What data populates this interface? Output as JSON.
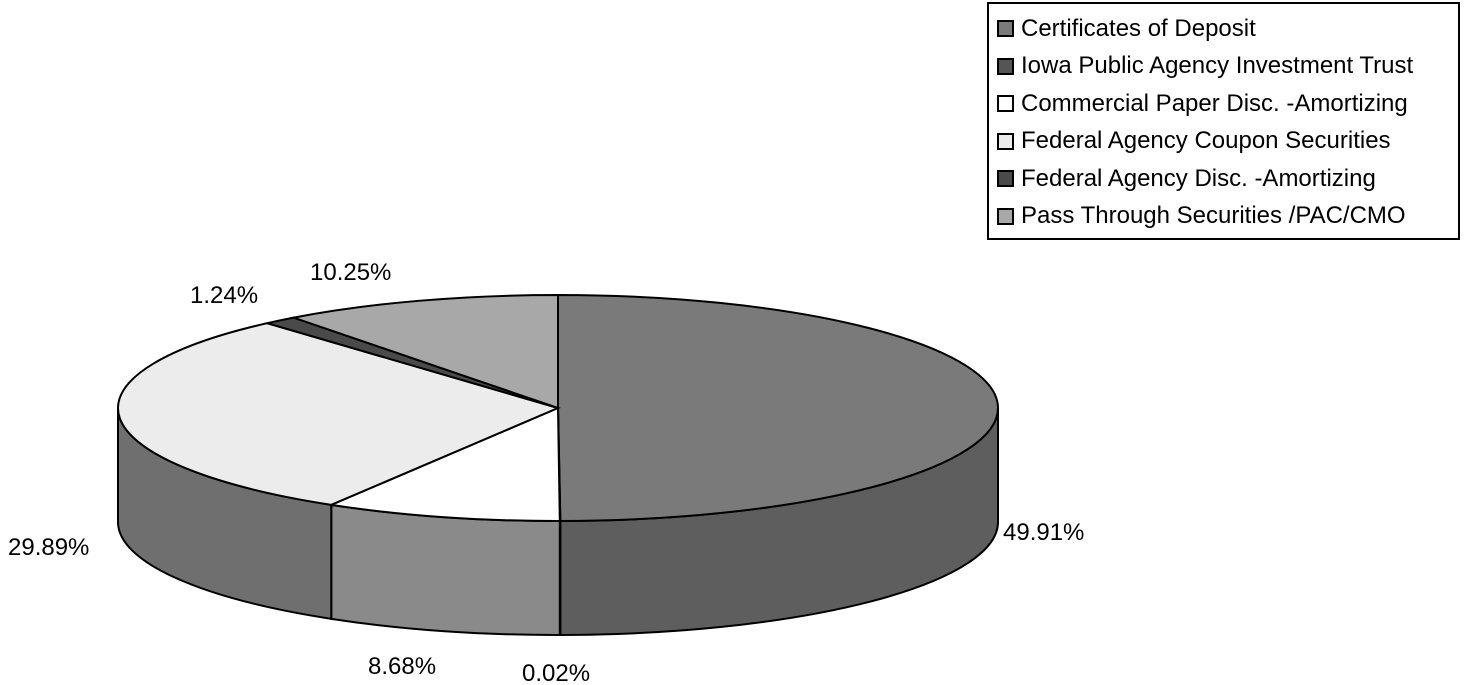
{
  "chart_data": {
    "type": "pie",
    "style": "3d",
    "legend_position": "top-right",
    "series": [
      {
        "name": "Certificates of Deposit",
        "value": 49.91,
        "label": "49.91%",
        "color": "#7a7a7a",
        "side_color": "#5e5e5e"
      },
      {
        "name": "Iowa Public Agency Investment Trust",
        "value": 0.02,
        "label": "0.02%",
        "color": "#555555",
        "side_color": "#444444"
      },
      {
        "name": "Commercial Paper Disc. -Amortizing",
        "value": 8.68,
        "label": "8.68%",
        "color": "#ffffff",
        "side_color": "#8a8a8a"
      },
      {
        "name": "Federal Agency Coupon Securities",
        "value": 29.89,
        "label": "29.89%",
        "color": "#ececec",
        "side_color": "#6f6f6f"
      },
      {
        "name": "Federal Agency Disc. -Amortizing",
        "value": 1.24,
        "label": "1.24%",
        "color": "#4a4a4a",
        "side_color": "#3c3c3c"
      },
      {
        "name": "Pass Through Securities /PAC/CMO",
        "value": 10.25,
        "label": "10.25%",
        "color": "#a8a8a8",
        "side_color": "#7c7c7c"
      }
    ]
  }
}
